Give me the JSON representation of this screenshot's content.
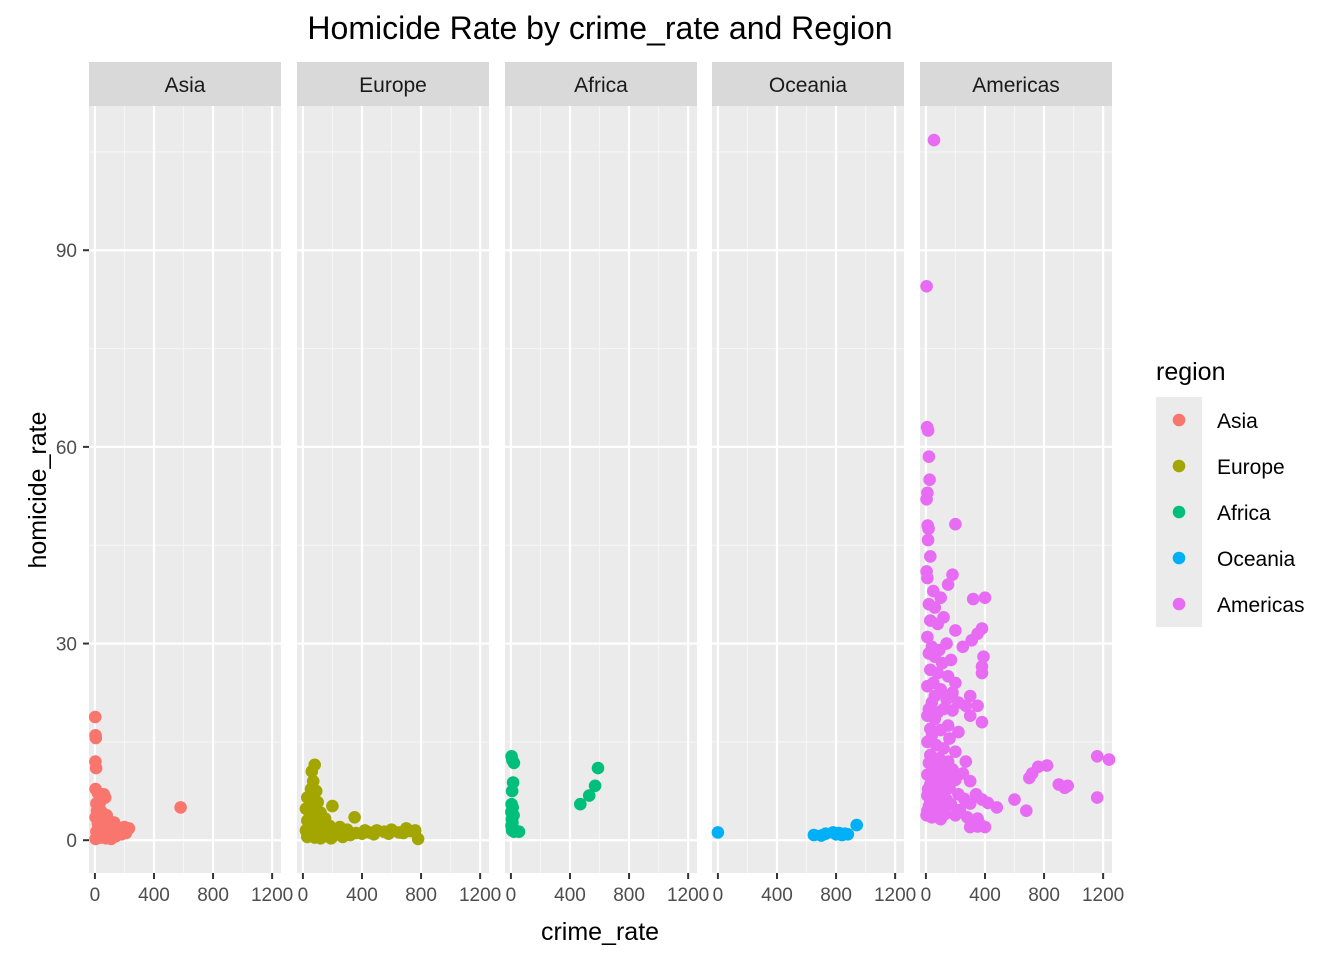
{
  "chart_data": {
    "type": "scatter",
    "title": "Homicide Rate by crime_rate and Region",
    "xlabel": "crime_rate",
    "ylabel": "homicide_rate",
    "xlim": [
      -40,
      1260
    ],
    "ylim": [
      -5,
      112
    ],
    "x_ticks": [
      0,
      400,
      800,
      1200
    ],
    "x_tick_labels": [
      "0",
      "400",
      "800",
      "1200"
    ],
    "y_ticks": [
      0,
      30,
      60,
      90
    ],
    "y_tick_labels": [
      "0",
      "30",
      "60",
      "90"
    ],
    "grid": true,
    "legend": {
      "title": "region",
      "position": "right"
    },
    "facets": [
      "Asia",
      "Europe",
      "Africa",
      "Oceania",
      "Americas"
    ],
    "series": [
      {
        "name": "Asia",
        "color": "#F8766D",
        "points": [
          [
            2,
            18.8
          ],
          [
            4,
            16
          ],
          [
            6,
            15.6
          ],
          [
            3,
            12
          ],
          [
            8,
            11
          ],
          [
            5,
            7.8
          ],
          [
            20,
            7.2
          ],
          [
            60,
            7
          ],
          [
            70,
            6.5
          ],
          [
            40,
            6
          ],
          [
            10,
            5.6
          ],
          [
            30,
            5
          ],
          [
            15,
            4.5
          ],
          [
            50,
            4.2
          ],
          [
            25,
            4
          ],
          [
            80,
            3.8
          ],
          [
            5,
            3.5
          ],
          [
            35,
            3
          ],
          [
            60,
            2.8
          ],
          [
            130,
            2.7
          ],
          [
            20,
            2.5
          ],
          [
            90,
            2.2
          ],
          [
            150,
            2
          ],
          [
            200,
            2
          ],
          [
            230,
            1.8
          ],
          [
            45,
            1.6
          ],
          [
            110,
            1.5
          ],
          [
            170,
            1.4
          ],
          [
            10,
            1.3
          ],
          [
            70,
            1.2
          ],
          [
            210,
            1.1
          ],
          [
            120,
            1
          ],
          [
            30,
            1
          ],
          [
            180,
            0.9
          ],
          [
            60,
            0.8
          ],
          [
            95,
            0.7
          ],
          [
            140,
            0.6
          ],
          [
            15,
            0.5
          ],
          [
            40,
            0.4
          ],
          [
            75,
            0.3
          ],
          [
            5,
            0.2
          ],
          [
            110,
            0.2
          ],
          [
            580,
            5
          ]
        ]
      },
      {
        "name": "Europe",
        "color": "#A3A500",
        "points": [
          [
            80,
            11.5
          ],
          [
            60,
            10.5
          ],
          [
            70,
            9
          ],
          [
            55,
            7.8
          ],
          [
            90,
            7.5
          ],
          [
            30,
            6.5
          ],
          [
            50,
            6
          ],
          [
            100,
            5.8
          ],
          [
            200,
            5.2
          ],
          [
            75,
            5
          ],
          [
            20,
            4.8
          ],
          [
            40,
            4.5
          ],
          [
            120,
            4.2
          ],
          [
            60,
            4
          ],
          [
            85,
            3.5
          ],
          [
            150,
            3.3
          ],
          [
            350,
            3.5
          ],
          [
            30,
            3
          ],
          [
            45,
            2.8
          ],
          [
            110,
            2.5
          ],
          [
            180,
            2.2
          ],
          [
            250,
            2
          ],
          [
            70,
            2
          ],
          [
            130,
            1.8
          ],
          [
            300,
            1.6
          ],
          [
            420,
            1.5
          ],
          [
            500,
            1.5
          ],
          [
            600,
            1.6
          ],
          [
            700,
            1.8
          ],
          [
            760,
            1.5
          ],
          [
            20,
            1.5
          ],
          [
            90,
            1.4
          ],
          [
            160,
            1.3
          ],
          [
            220,
            1.2
          ],
          [
            280,
            1.2
          ],
          [
            360,
            1.1
          ],
          [
            450,
            1.2
          ],
          [
            550,
            1.3
          ],
          [
            650,
            1.2
          ],
          [
            730,
            1.4
          ],
          [
            40,
            1
          ],
          [
            100,
            1
          ],
          [
            170,
            0.9
          ],
          [
            240,
            0.9
          ],
          [
            320,
            0.8
          ],
          [
            400,
            1
          ],
          [
            480,
            0.9
          ],
          [
            580,
            1
          ],
          [
            680,
            1.1
          ],
          [
            60,
            0.7
          ],
          [
            140,
            0.6
          ],
          [
            200,
            0.5
          ],
          [
            270,
            0.5
          ],
          [
            30,
            0.5
          ],
          [
            80,
            0.4
          ],
          [
            120,
            0.3
          ],
          [
            190,
            0.3
          ],
          [
            780,
            0.2
          ]
        ]
      },
      {
        "name": "Africa",
        "color": "#00BF7D",
        "points": [
          [
            5,
            12.8
          ],
          [
            10,
            12.2
          ],
          [
            20,
            11.8
          ],
          [
            15,
            8.8
          ],
          [
            8,
            7.5
          ],
          [
            5,
            5.5
          ],
          [
            12,
            5
          ],
          [
            3,
            4.3
          ],
          [
            18,
            3.8
          ],
          [
            7,
            3.2
          ],
          [
            10,
            2.7
          ],
          [
            4,
            2.2
          ],
          [
            15,
            1.8
          ],
          [
            8,
            1.5
          ],
          [
            20,
            1.3
          ],
          [
            55,
            1.3
          ],
          [
            470,
            5.5
          ],
          [
            530,
            6.8
          ],
          [
            570,
            8.3
          ],
          [
            590,
            11
          ]
        ]
      },
      {
        "name": "Oceania",
        "color": "#00B0F6",
        "points": [
          [
            0,
            1.2
          ],
          [
            650,
            0.8
          ],
          [
            700,
            0.7
          ],
          [
            730,
            1
          ],
          [
            780,
            1.2
          ],
          [
            800,
            0.9
          ],
          [
            820,
            1.1
          ],
          [
            840,
            0.8
          ],
          [
            860,
            1
          ],
          [
            880,
            0.9
          ],
          [
            940,
            2.3
          ]
        ]
      },
      {
        "name": "Americas",
        "color": "#E76BF3",
        "points": [
          [
            55,
            106.8
          ],
          [
            5,
            84.5
          ],
          [
            8,
            63
          ],
          [
            15,
            62.5
          ],
          [
            20,
            58.5
          ],
          [
            25,
            55
          ],
          [
            10,
            53
          ],
          [
            5,
            52
          ],
          [
            12,
            48
          ],
          [
            18,
            47.5
          ],
          [
            200,
            48.2
          ],
          [
            15,
            45.8
          ],
          [
            30,
            43.3
          ],
          [
            5,
            41
          ],
          [
            10,
            40
          ],
          [
            180,
            40.5
          ],
          [
            50,
            38
          ],
          [
            150,
            39
          ],
          [
            100,
            37
          ],
          [
            320,
            36.8
          ],
          [
            400,
            37
          ],
          [
            20,
            36
          ],
          [
            60,
            35.5
          ],
          [
            120,
            34
          ],
          [
            30,
            33.5
          ],
          [
            80,
            33
          ],
          [
            200,
            32
          ],
          [
            380,
            32.3
          ],
          [
            350,
            31.5
          ],
          [
            310,
            30.5
          ],
          [
            10,
            31
          ],
          [
            140,
            30
          ],
          [
            40,
            29.5
          ],
          [
            90,
            29
          ],
          [
            250,
            29.5
          ],
          [
            20,
            28.5
          ],
          [
            60,
            28
          ],
          [
            170,
            27.5
          ],
          [
            390,
            28
          ],
          [
            110,
            27
          ],
          [
            380,
            26.5
          ],
          [
            30,
            26
          ],
          [
            80,
            25.5
          ],
          [
            150,
            25
          ],
          [
            380,
            25.5
          ],
          [
            50,
            24
          ],
          [
            200,
            24
          ],
          [
            10,
            23.5
          ],
          [
            100,
            23
          ],
          [
            180,
            22.5
          ],
          [
            300,
            22
          ],
          [
            60,
            22
          ],
          [
            140,
            21.5
          ],
          [
            220,
            21
          ],
          [
            40,
            21
          ],
          [
            270,
            20.5
          ],
          [
            350,
            20.5
          ],
          [
            20,
            20
          ],
          [
            120,
            20
          ],
          [
            180,
            19.8
          ],
          [
            80,
            19.5
          ],
          [
            300,
            19
          ],
          [
            10,
            19
          ],
          [
            60,
            18.5
          ],
          [
            380,
            18
          ],
          [
            150,
            17.5
          ],
          [
            30,
            17
          ],
          [
            100,
            16.8
          ],
          [
            220,
            16.5
          ],
          [
            40,
            16
          ],
          [
            160,
            15.5
          ],
          [
            10,
            15
          ],
          [
            70,
            14.5
          ],
          [
            120,
            14
          ],
          [
            200,
            13.5
          ],
          [
            30,
            13
          ],
          [
            90,
            12.5
          ],
          [
            150,
            12
          ],
          [
            270,
            12
          ],
          [
            20,
            11.8
          ],
          [
            60,
            11.5
          ],
          [
            120,
            11
          ],
          [
            180,
            10.8
          ],
          [
            40,
            10.5
          ],
          [
            80,
            10
          ],
          [
            250,
            10.2
          ],
          [
            10,
            10
          ],
          [
            130,
            9.5
          ],
          [
            200,
            9.2
          ],
          [
            60,
            9
          ],
          [
            300,
            9
          ],
          [
            30,
            8.5
          ],
          [
            90,
            8.2
          ],
          [
            160,
            8
          ],
          [
            15,
            7.8
          ],
          [
            50,
            7.5
          ],
          [
            100,
            7.2
          ],
          [
            220,
            7
          ],
          [
            340,
            7
          ],
          [
            10,
            6.8
          ],
          [
            70,
            6.5
          ],
          [
            140,
            6.2
          ],
          [
            260,
            6.3
          ],
          [
            380,
            6.2
          ],
          [
            30,
            6
          ],
          [
            90,
            5.8
          ],
          [
            170,
            5.5
          ],
          [
            300,
            5.6
          ],
          [
            420,
            5.7
          ],
          [
            20,
            5.2
          ],
          [
            60,
            5
          ],
          [
            110,
            4.8
          ],
          [
            230,
            4.6
          ],
          [
            480,
            5
          ],
          [
            600,
            6.2
          ],
          [
            700,
            9.5
          ],
          [
            720,
            10.2
          ],
          [
            760,
            11.2
          ],
          [
            820,
            11.4
          ],
          [
            900,
            8.5
          ],
          [
            940,
            8
          ],
          [
            960,
            8.3
          ],
          [
            1160,
            12.8
          ],
          [
            1240,
            12.3
          ],
          [
            1160,
            6.5
          ],
          [
            680,
            4.5
          ],
          [
            10,
            4.5
          ],
          [
            50,
            4.2
          ],
          [
            130,
            4
          ],
          [
            200,
            3.8
          ],
          [
            280,
            3.5
          ],
          [
            350,
            3.3
          ],
          [
            40,
            3.5
          ],
          [
            100,
            3.2
          ],
          [
            320,
            2.8
          ],
          [
            380,
            2.2
          ],
          [
            400,
            2
          ],
          [
            300,
            2
          ],
          [
            320,
            2.5
          ],
          [
            350,
            2.1
          ],
          [
            5,
            3.8
          ]
        ]
      }
    ]
  }
}
